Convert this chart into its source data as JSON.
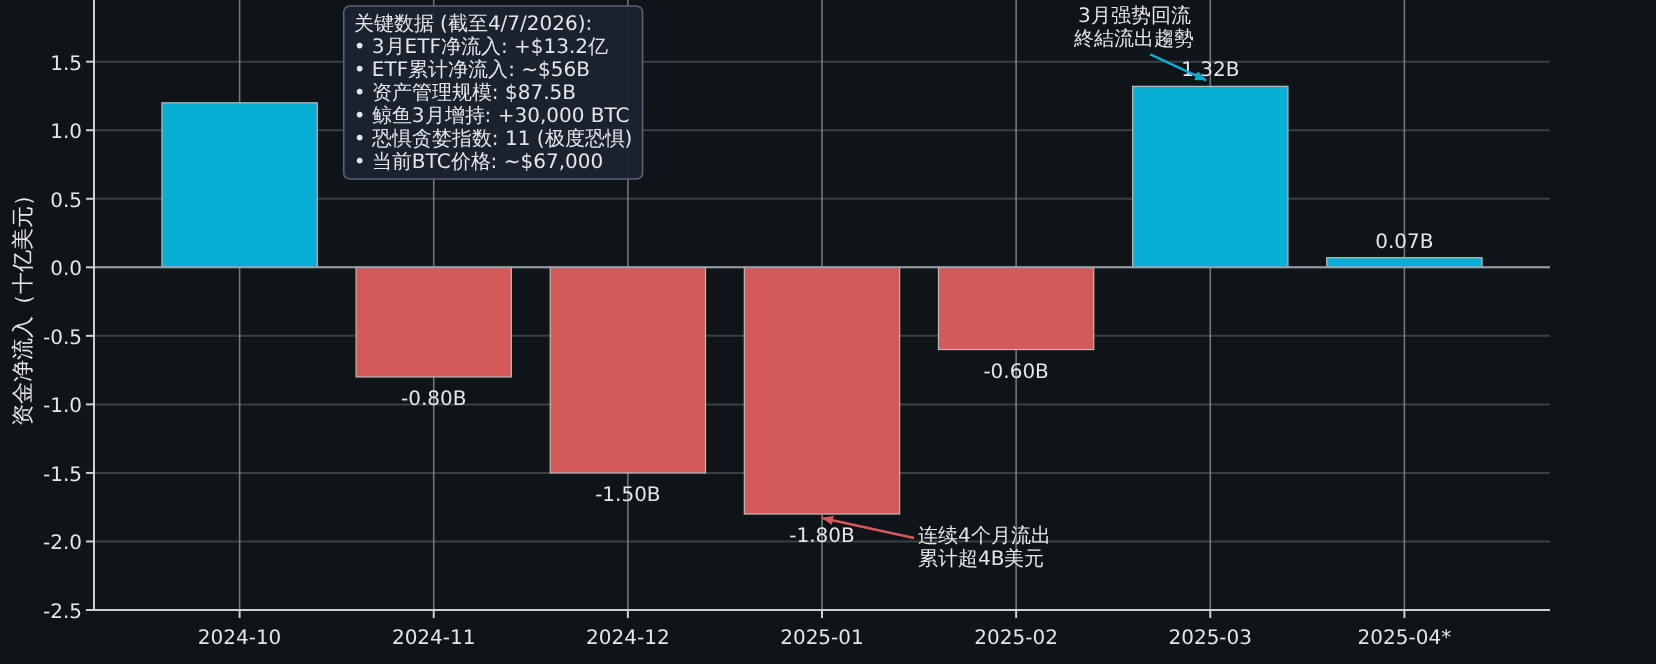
{
  "chart_data": {
    "type": "bar",
    "ylabel": "资金净流入（十亿美元）",
    "categories": [
      "2024-10",
      "2024-11",
      "2024-12",
      "2025-01",
      "2025-02",
      "2025-03",
      "2025-04*"
    ],
    "values": [
      1.2,
      -0.8,
      -1.5,
      -1.8,
      -0.6,
      1.32,
      0.07
    ],
    "colors": [
      "#06b0d4",
      "#d45a5a",
      "#d45a5a",
      "#d45a5a",
      "#d45a5a",
      "#06b0d4",
      "#06b0d4"
    ],
    "value_labels": [
      null,
      "-0.80B",
      "-1.50B",
      "-1.80B",
      "-0.60B",
      "1.32B",
      "0.07B"
    ],
    "ylim": [
      -2.5,
      1.95
    ],
    "yticks": [
      {
        "value": -2.5,
        "label": "-2.5"
      },
      {
        "value": -2.0,
        "label": "-2.0"
      },
      {
        "value": -1.5,
        "label": "-1.5"
      },
      {
        "value": -1.0,
        "label": "-1.0"
      },
      {
        "value": -0.5,
        "label": "-0.5"
      },
      {
        "value": 0,
        "label": "0.0"
      },
      {
        "value": 0.5,
        "label": "0.5"
      },
      {
        "value": 1.0,
        "label": "1.0"
      },
      {
        "value": 1.5,
        "label": "1.5"
      }
    ],
    "grid": true,
    "annotations": [
      {
        "text": "3月强势回流終結流出趨勢",
        "x": "2025-03",
        "y": 1.32
      },
      {
        "text": "连续4个月流出累计超4B美元",
        "x": "2025-01",
        "y": -1.8
      },
      "关键数据 (截至4/7/2026):\n• 3月ETF净流入: +$13.2亿\n• ETF累计净流入: ~$56B\n• 资产管理规模: $87.5B\n• 鲸鱼3月增持: +30,000 BTC\n• 恐惧贪婪指数: 11 (极度恐惧)\n• 当前BTC价格: ~$67,000"
    ]
  }
}
